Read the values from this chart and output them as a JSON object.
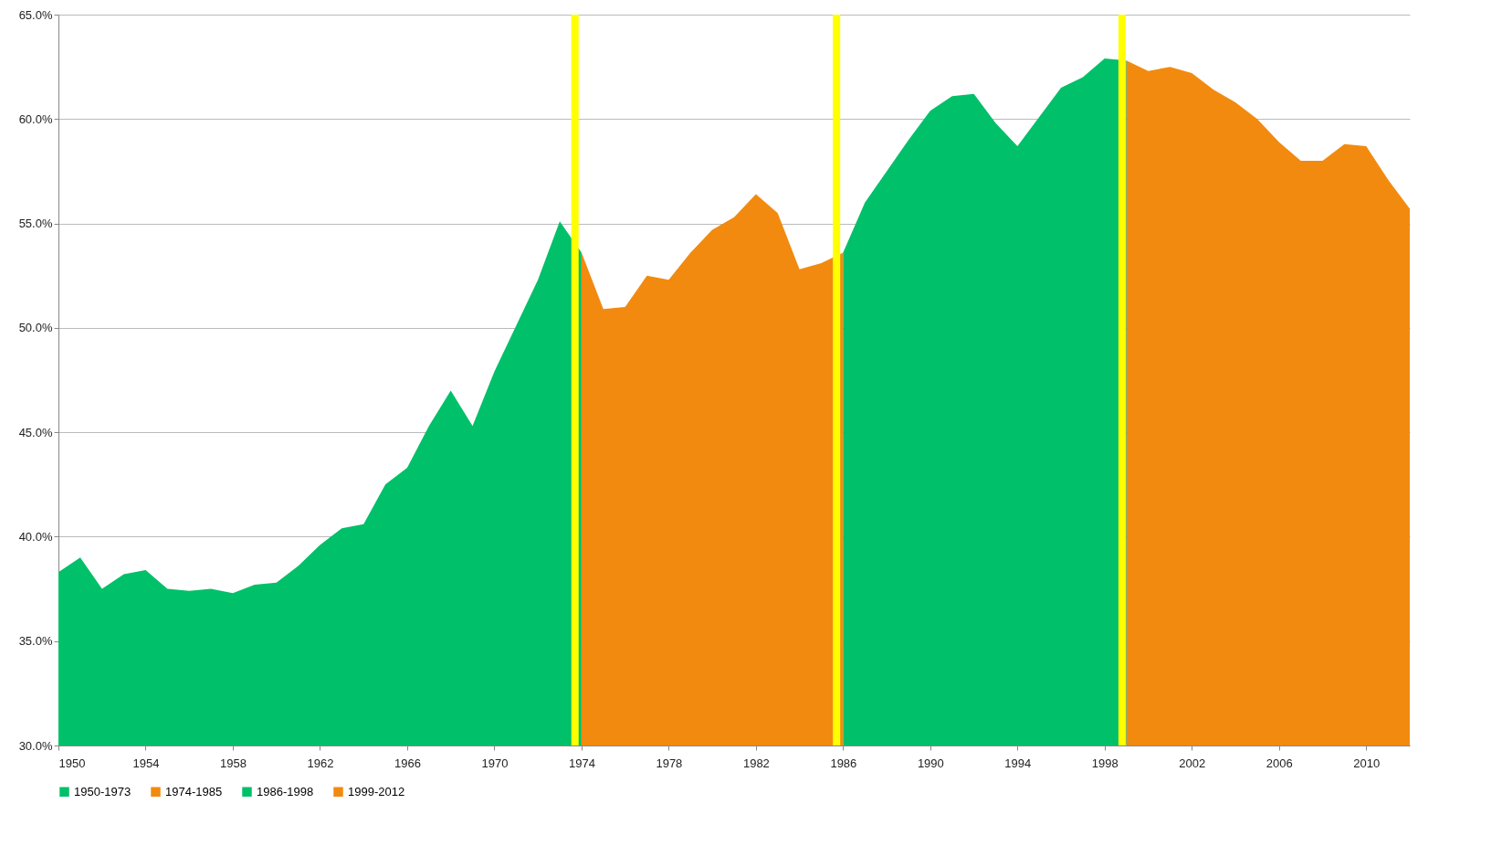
{
  "chart_data": {
    "type": "area",
    "xlim": [
      1950,
      2012
    ],
    "xticks": [
      1950,
      1954,
      1958,
      1962,
      1966,
      1970,
      1974,
      1978,
      1982,
      1986,
      1990,
      1994,
      1998,
      2002,
      2006,
      2010
    ],
    "ylim": [
      30,
      65
    ],
    "yticks": [
      {
        "value": 30,
        "label": "30.0%"
      },
      {
        "value": 35,
        "label": "35.0%"
      },
      {
        "value": 40,
        "label": "40.0%"
      },
      {
        "value": 45,
        "label": "45.0%"
      },
      {
        "value": 50,
        "label": "50.0%"
      },
      {
        "value": 55,
        "label": "55.0%"
      },
      {
        "value": 60,
        "label": "60.0%"
      },
      {
        "value": 65,
        "label": "65.0%"
      }
    ],
    "grid": "y",
    "legend": "bottom",
    "series": [
      {
        "name": "1950-1973",
        "color": "#00c06a",
        "x": [
          1950,
          1951,
          1952,
          1953,
          1954,
          1955,
          1956,
          1957,
          1958,
          1959,
          1960,
          1961,
          1962,
          1963,
          1964,
          1965,
          1966,
          1967,
          1968,
          1969,
          1970,
          1971,
          1972,
          1973,
          1974
        ],
        "values": [
          38.3,
          39.0,
          37.5,
          38.2,
          38.4,
          37.5,
          37.4,
          37.5,
          37.3,
          37.7,
          37.8,
          38.6,
          39.6,
          40.4,
          40.6,
          42.5,
          43.3,
          45.3,
          47.0,
          45.3,
          47.9,
          50.1,
          52.3,
          55.1,
          53.6
        ]
      },
      {
        "name": "1974-1985",
        "color": "#f28a10",
        "x": [
          1974,
          1975,
          1976,
          1977,
          1978,
          1979,
          1980,
          1981,
          1982,
          1983,
          1984,
          1985,
          1986
        ],
        "values": [
          53.6,
          50.9,
          51.0,
          52.5,
          52.3,
          53.6,
          54.7,
          55.3,
          56.4,
          55.5,
          52.8,
          53.1,
          53.6
        ]
      },
      {
        "name": "1986-1998",
        "color": "#00c06a",
        "x": [
          1986,
          1987,
          1988,
          1989,
          1990,
          1991,
          1992,
          1993,
          1994,
          1995,
          1996,
          1997,
          1998,
          1999
        ],
        "values": [
          53.6,
          56.0,
          57.5,
          59.0,
          60.4,
          61.1,
          61.2,
          59.8,
          58.7,
          60.1,
          61.5,
          62.0,
          62.9,
          62.8
        ]
      },
      {
        "name": "1999-2012",
        "color": "#f28a10",
        "x": [
          1999,
          2000,
          2001,
          2002,
          2003,
          2004,
          2005,
          2006,
          2007,
          2008,
          2009,
          2010,
          2011,
          2012
        ],
        "values": [
          62.8,
          62.3,
          62.5,
          62.2,
          61.4,
          60.8,
          60.0,
          58.9,
          58.0,
          58.0,
          58.8,
          58.7,
          57.1,
          55.7
        ]
      }
    ],
    "ref_lines": [
      {
        "axis": "x",
        "value": 1973.7,
        "color": "#ffff00"
      },
      {
        "axis": "x",
        "value": 1985.7,
        "color": "#ffff00"
      },
      {
        "axis": "x",
        "value": 1998.8,
        "color": "#ffff00"
      }
    ]
  }
}
